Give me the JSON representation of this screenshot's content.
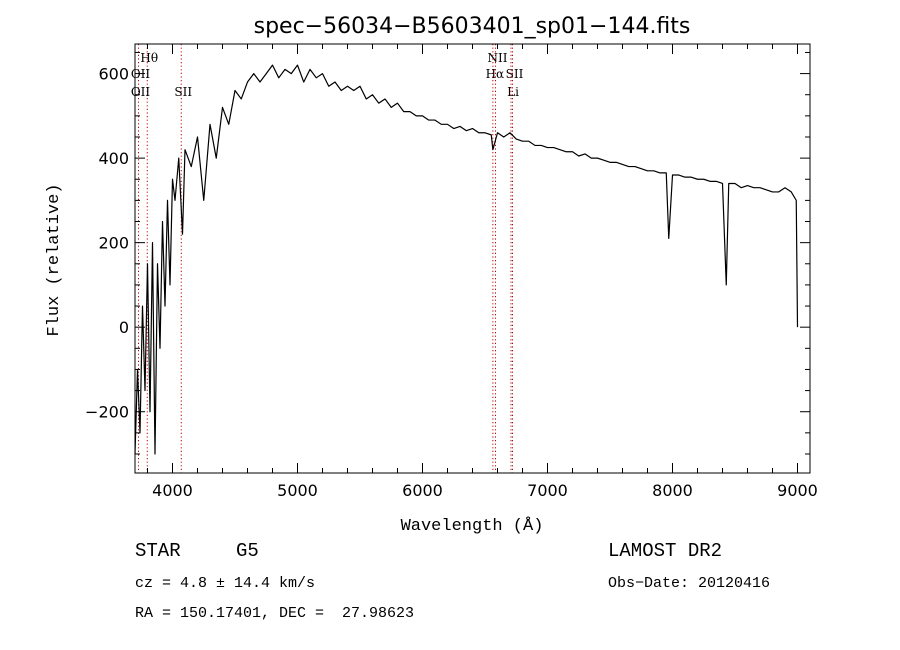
{
  "chart_data": {
    "type": "line",
    "title": "spec−56034−B5603401_sp01−144.fits",
    "xlabel": "Wavelength (Å)",
    "ylabel": "Flux (relative)",
    "xlim": [
      3700,
      9100
    ],
    "ylim": [
      -345,
      670
    ],
    "x_ticks": [
      4000,
      5000,
      6000,
      7000,
      8000,
      9000
    ],
    "x_tick_labels": [
      "4000",
      "5000",
      "6000",
      "7000",
      "8000",
      "9000"
    ],
    "y_ticks": [
      -200,
      0,
      200,
      400,
      600
    ],
    "y_tick_labels": [
      "−200",
      "0",
      "200",
      "400",
      "600"
    ],
    "grid": false,
    "series": [
      {
        "color": "#000000",
        "x": [
          3700,
          3720,
          3740,
          3760,
          3780,
          3800,
          3820,
          3840,
          3860,
          3880,
          3900,
          3920,
          3940,
          3960,
          3980,
          4000,
          4020,
          4050,
          4080,
          4100,
          4150,
          4200,
          4250,
          4300,
          4350,
          4400,
          4450,
          4500,
          4550,
          4600,
          4650,
          4700,
          4750,
          4800,
          4850,
          4900,
          4950,
          5000,
          5050,
          5100,
          5150,
          5200,
          5250,
          5300,
          5350,
          5400,
          5450,
          5500,
          5550,
          5600,
          5650,
          5700,
          5750,
          5800,
          5850,
          5900,
          5950,
          6000,
          6050,
          6100,
          6150,
          6200,
          6250,
          6300,
          6350,
          6400,
          6450,
          6500,
          6550,
          6563,
          6600,
          6650,
          6700,
          6750,
          6800,
          6850,
          6900,
          6950,
          7000,
          7050,
          7100,
          7150,
          7200,
          7250,
          7300,
          7350,
          7400,
          7450,
          7500,
          7550,
          7600,
          7650,
          7700,
          7750,
          7800,
          7850,
          7900,
          7950,
          7970,
          8000,
          8050,
          8100,
          8150,
          8200,
          8250,
          8300,
          8350,
          8400,
          8430,
          8450,
          8500,
          8550,
          8600,
          8650,
          8700,
          8750,
          8800,
          8850,
          8900,
          8950,
          8990,
          9000
        ],
        "y": [
          -300,
          -100,
          -250,
          50,
          -150,
          150,
          -200,
          200,
          -300,
          150,
          -50,
          250,
          50,
          300,
          100,
          350,
          300,
          400,
          220,
          420,
          380,
          450,
          300,
          480,
          400,
          520,
          480,
          560,
          540,
          580,
          600,
          580,
          600,
          620,
          590,
          610,
          600,
          620,
          580,
          610,
          590,
          600,
          570,
          580,
          560,
          570,
          560,
          570,
          540,
          550,
          530,
          540,
          520,
          530,
          510,
          510,
          500,
          500,
          490,
          490,
          480,
          480,
          470,
          475,
          465,
          470,
          460,
          460,
          455,
          420,
          460,
          450,
          460,
          445,
          440,
          440,
          430,
          430,
          425,
          425,
          420,
          415,
          415,
          405,
          410,
          400,
          400,
          395,
          390,
          390,
          385,
          380,
          380,
          375,
          370,
          370,
          365,
          365,
          210,
          360,
          360,
          355,
          355,
          350,
          350,
          345,
          345,
          340,
          100,
          340,
          340,
          330,
          335,
          330,
          330,
          325,
          320,
          320,
          330,
          320,
          300,
          0
        ]
      }
    ],
    "line_markers": [
      {
        "label": "Hθ",
        "x": 3798,
        "row": 0,
        "color": "#c00000"
      },
      {
        "label": "OII",
        "x": 3728,
        "row": 1,
        "color": "#c00000"
      },
      {
        "label": "OII",
        "x": 3728,
        "row": 2,
        "color": "#c00000"
      },
      {
        "label": "SII",
        "x": 4070,
        "row": 2,
        "color": "#c00000"
      },
      {
        "label": "NII",
        "x": 6584,
        "row": 0,
        "color": "#c00000"
      },
      {
        "label": "Hα",
        "x": 6563,
        "row": 1,
        "color": "#c00000"
      },
      {
        "label": "SII",
        "x": 6720,
        "row": 1,
        "color": "#c00000"
      },
      {
        "label": "Li",
        "x": 6708,
        "row": 2,
        "color": "#c00000"
      }
    ]
  },
  "info": {
    "object_class": "STAR",
    "subclass": "G5",
    "survey": "LAMOST DR2",
    "redshift": "cz = 4.8 ± 14.4 km/s",
    "obs_date": "Obs−Date: 20120416",
    "coords": "RA = 150.17401, DEC =  27.98623"
  }
}
